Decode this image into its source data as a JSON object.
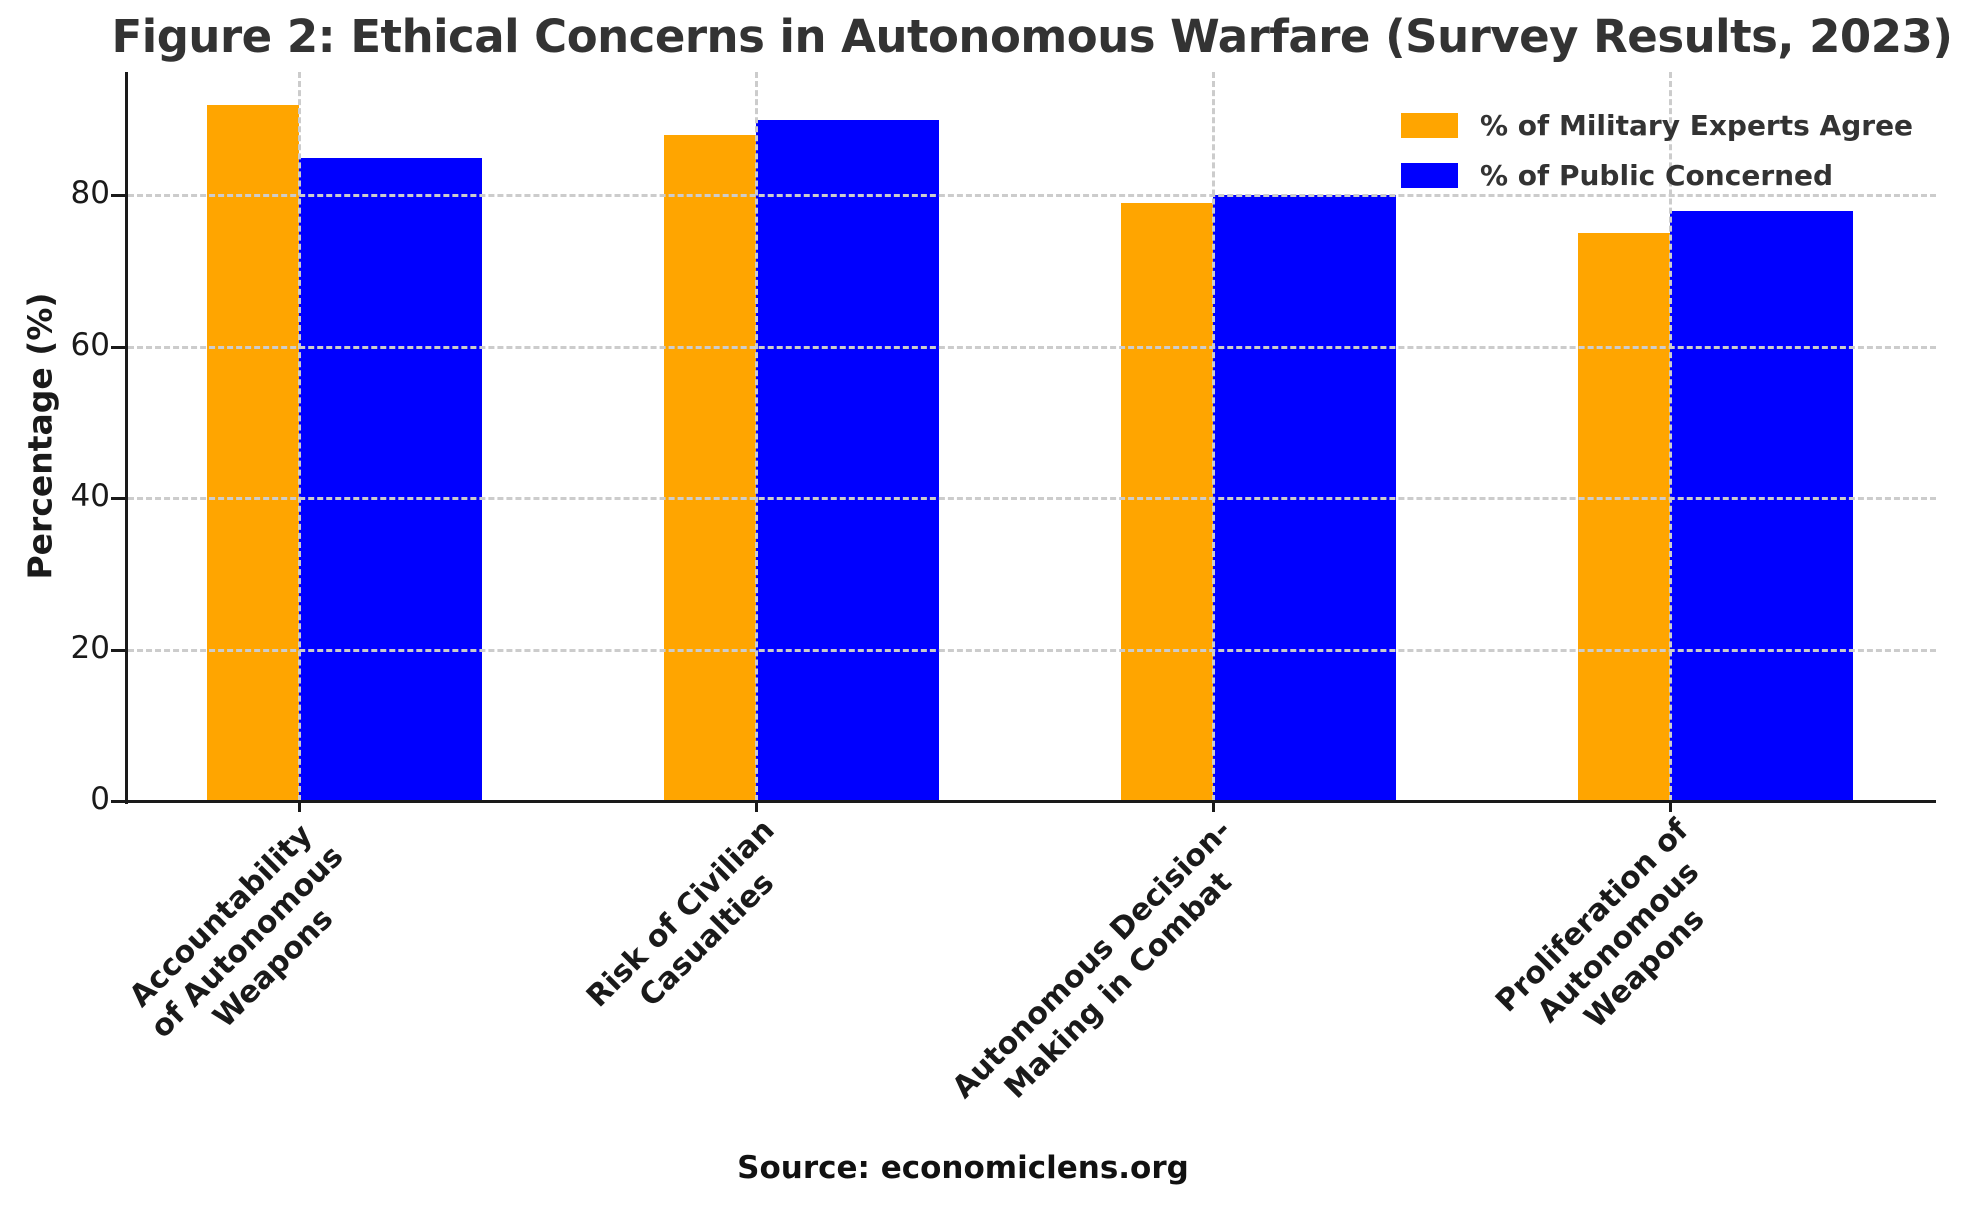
{
  "chart_data": {
    "type": "bar",
    "title": "Figure 2: Ethical Concerns in Autonomous Warfare (Survey Results, 2023)",
    "ylabel": "Percentage (%)",
    "xlabel": "",
    "source": "Source: economiclens.org",
    "categories": [
      "Accountability\nof Autonomous\nWeapons",
      "Risk of Civilian\nCasualties",
      "Autonomous Decision-\nMaking in Combat",
      "Proliferation of\nAutonomous\nWeapons"
    ],
    "series": [
      {
        "name": "% of Military Experts Agree",
        "color": "#FFA500",
        "values": [
          92,
          88,
          79,
          75
        ]
      },
      {
        "name": "% of Public Concerned",
        "color": "#0000FF",
        "values": [
          85,
          90,
          80,
          78
        ]
      }
    ],
    "ylim": [
      0,
      96.3
    ],
    "yticks": [
      0,
      20,
      40,
      60,
      80
    ],
    "grid": "dashed, horizontal and vertical, drawn over bars",
    "grid_color": "#cccccc",
    "legend_position": "upper right",
    "xtick_rotation": 45
  }
}
